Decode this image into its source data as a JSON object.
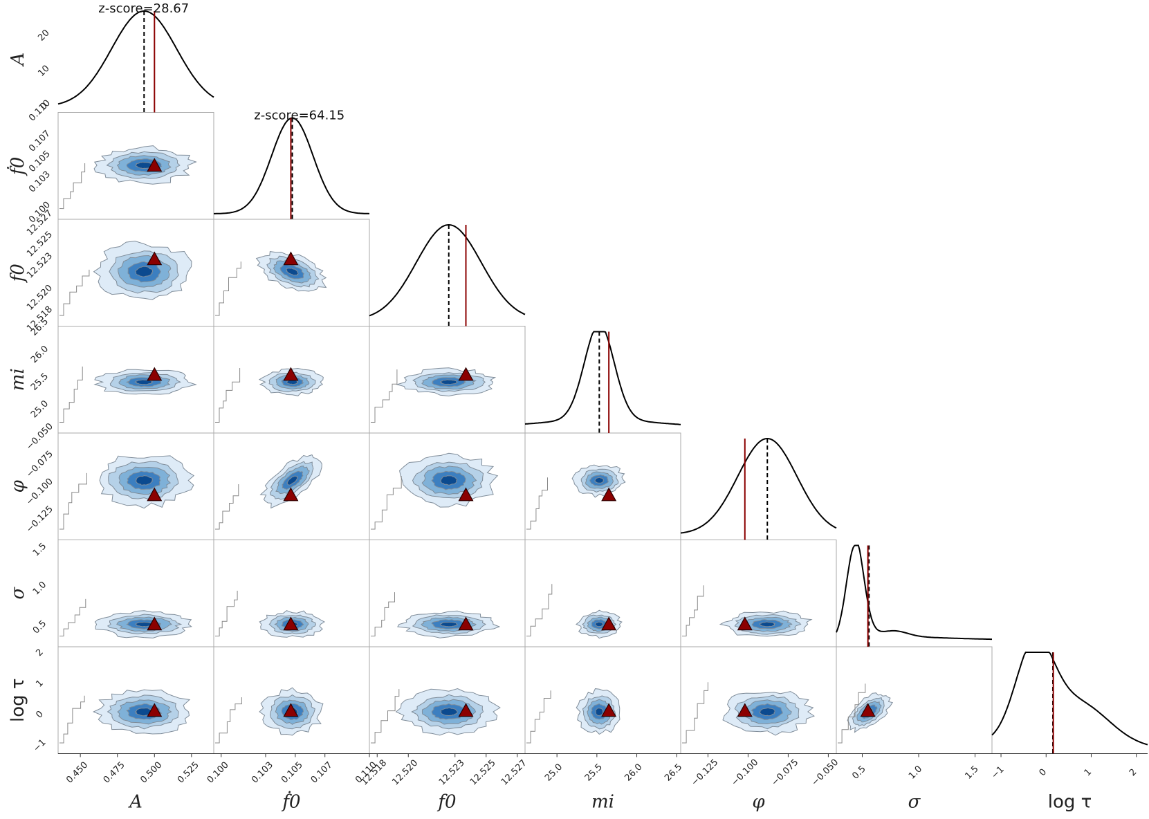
{
  "chart_data": {
    "type": "corner",
    "parameters": [
      {
        "name": "A",
        "label": "A",
        "range": [
          0.435,
          0.54
        ],
        "ticks": [
          0.45,
          0.475,
          0.5,
          0.525
        ],
        "tick_labels": [
          "0.450",
          "0.475",
          "0.500",
          "0.525"
        ],
        "posterior_peak": 0.493,
        "true_value": 0.5,
        "density_ticks": [
          0,
          10,
          20
        ],
        "density_max": 27
      },
      {
        "name": "fdot0",
        "label": "ḟ0",
        "range": [
          0.0995,
          0.11
        ],
        "ticks": [
          0.1,
          0.103,
          0.105,
          0.107,
          0.11
        ],
        "tick_labels": [
          "0.100",
          "0.103",
          "0.105",
          "0.107",
          "0.110"
        ],
        "posterior_peak": 0.1048,
        "true_value": 0.1047
      },
      {
        "name": "f0",
        "label": "f0",
        "range": [
          12.5175,
          12.5275
        ],
        "ticks": [
          12.518,
          12.52,
          12.523,
          12.525,
          12.527
        ],
        "tick_labels": [
          "12.518",
          "12.520",
          "12.523",
          "12.525",
          "12.527"
        ],
        "posterior_peak": 12.5226,
        "true_value": 12.5237
      },
      {
        "name": "m_i",
        "label": "mi",
        "range": [
          24.6,
          26.55
        ],
        "ticks": [
          25.0,
          25.5,
          26.0,
          26.5
        ],
        "tick_labels": [
          "25.0",
          "25.5",
          "26.0",
          "26.5"
        ],
        "posterior_peak": 25.53,
        "true_value": 25.65
      },
      {
        "name": "phi",
        "label": "φ",
        "range": [
          -0.142,
          -0.045
        ],
        "ticks": [
          -0.125,
          -0.1,
          -0.075,
          -0.05
        ],
        "tick_labels": [
          "−0.125",
          "−0.100",
          "−0.075",
          "−0.050"
        ],
        "posterior_peak": -0.088,
        "true_value": -0.102
      },
      {
        "name": "sigma",
        "label": "σ",
        "range": [
          0.27,
          1.65
        ],
        "ticks": [
          0.5,
          1.0,
          1.5
        ],
        "tick_labels": [
          "0.5",
          "1.0",
          "1.5"
        ],
        "posterior_peak": 0.56,
        "true_value": 0.55
      },
      {
        "name": "log_tau",
        "label": "log τ",
        "range": [
          -1.2,
          2.25
        ],
        "ticks": [
          -1,
          0,
          1,
          2
        ],
        "tick_labels": [
          "−1",
          "0",
          "1",
          "2"
        ],
        "posterior_peak": 0.15,
        "true_value": 0.16
      }
    ],
    "annotations": [
      {
        "text": "z-score=28.67",
        "panel": "A"
      },
      {
        "text": "z-score=64.15",
        "panel": "fdot0"
      }
    ],
    "legend": "none",
    "grid": false,
    "contour_levels": 5,
    "marker": "true value (red triangle)"
  },
  "colors": {
    "kde_line": "#000000",
    "truth_line": "#8b0000",
    "marker_fill": "#8b0000",
    "contour_1": "#deebf7",
    "contour_2": "#b5d1e8",
    "contour_3": "#7fb1d8",
    "contour_4": "#3c7fc0",
    "contour_5": "#0b4a8f",
    "frame": "#aaaaaa"
  }
}
